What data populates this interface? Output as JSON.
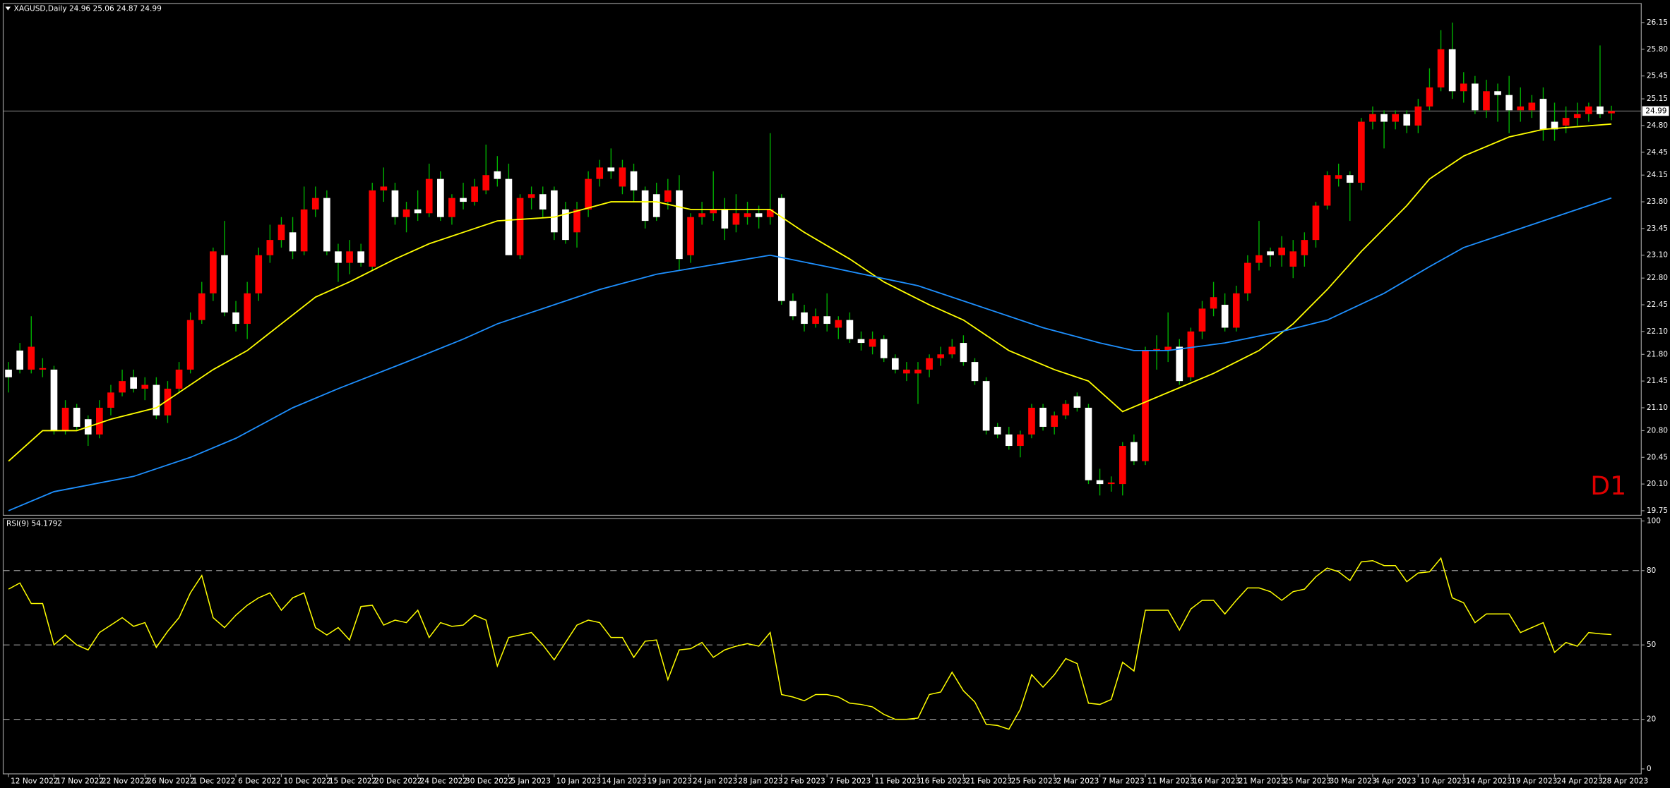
{
  "chart_data": {
    "type": "candlestick",
    "title": "XAGUSD,Daily  24.96 25.06 24.87 24.99",
    "timeframe_label": "D1",
    "bull_color": "#ff0000",
    "bear_color": "#ffffff",
    "wick_color": "#00b400",
    "categories": [
      "12 Nov 2022",
      null,
      null,
      null,
      "17 Nov 2022",
      null,
      null,
      null,
      "22 Nov 2022",
      null,
      null,
      null,
      "26 Nov 2022",
      null,
      null,
      null,
      "1 Dec 2022",
      null,
      null,
      null,
      "6 Dec 2022",
      null,
      null,
      null,
      "10 Dec 2022",
      null,
      null,
      null,
      "15 Dec 2022",
      null,
      null,
      null,
      "20 Dec 2022",
      null,
      null,
      null,
      "24 Dec 2022",
      null,
      null,
      null,
      "30 Dec 2022",
      null,
      null,
      null,
      "5 Jan 2023",
      null,
      null,
      null,
      "10 Jan 2023",
      null,
      null,
      null,
      "14 Jan 2023",
      null,
      null,
      null,
      "19 Jan 2023",
      null,
      null,
      null,
      "24 Jan 2023",
      null,
      null,
      null,
      "28 Jan 2023",
      null,
      null,
      null,
      "2 Feb 2023",
      null,
      null,
      null,
      "7 Feb 2023",
      null,
      null,
      null,
      "11 Feb 2023",
      null,
      null,
      null,
      "16 Feb 2023",
      null,
      null,
      null,
      "21 Feb 2023",
      null,
      null,
      null,
      "25 Feb 2023",
      null,
      null,
      null,
      "2 Mar 2023",
      null,
      null,
      null,
      "7 Mar 2023",
      null,
      null,
      null,
      "11 Mar 2023",
      null,
      null,
      null,
      "16 Mar 2023",
      null,
      null,
      null,
      "21 Mar 2023",
      null,
      null,
      null,
      "25 Mar 2023",
      null,
      null,
      null,
      "30 Mar 2023",
      null,
      null,
      null,
      "4 Apr 2023",
      null,
      null,
      null,
      "10 Apr 2023",
      null,
      null,
      null,
      "14 Apr 2023",
      null,
      null,
      null,
      "19 Apr 2023",
      null,
      null,
      null,
      "24 Apr 2023",
      null,
      null,
      null,
      "28 Apr 2023",
      null
    ],
    "open": [
      21.6,
      21.85,
      21.6,
      21.6,
      21.6,
      20.8,
      21.1,
      20.95,
      20.75,
      21.1,
      21.3,
      21.5,
      21.35,
      21.4,
      21.0,
      21.35,
      21.6,
      22.25,
      22.6,
      23.1,
      22.35,
      22.2,
      22.6,
      23.1,
      23.3,
      23.4,
      23.15,
      23.7,
      23.85,
      23.15,
      23.0,
      23.15,
      22.95,
      23.95,
      23.95,
      23.6,
      23.7,
      23.65,
      24.1,
      23.6,
      23.85,
      23.8,
      23.95,
      24.2,
      24.1,
      23.1,
      23.85,
      23.9,
      23.95,
      23.7,
      23.4,
      23.7,
      24.1,
      24.25,
      24.0,
      24.2,
      23.95,
      23.9,
      23.8,
      23.95,
      23.1,
      23.6,
      23.65,
      23.7,
      23.5,
      23.6,
      23.65,
      23.6,
      23.85,
      22.5,
      22.35,
      22.2,
      22.3,
      22.15,
      22.25,
      22.0,
      21.9,
      22.0,
      21.75,
      21.55,
      21.55,
      21.6,
      21.75,
      21.8,
      21.95,
      21.7,
      21.45,
      20.85,
      20.75,
      20.6,
      20.75,
      21.1,
      20.85,
      21.0,
      21.25,
      21.1,
      20.15,
      20.1,
      20.1,
      20.65,
      20.4,
      21.85,
      21.85,
      21.9,
      21.5,
      22.1,
      22.4,
      22.45,
      22.15,
      22.6,
      23.0,
      23.15,
      23.1,
      22.95,
      23.1,
      23.3,
      23.75,
      24.1,
      24.15,
      24.05,
      24.85,
      24.95,
      24.85,
      24.95,
      24.8,
      25.05,
      25.3,
      25.8,
      25.25,
      25.35,
      25.0,
      25.25,
      25.2,
      25.0,
      25.0,
      25.15,
      24.85,
      24.8,
      24.9,
      24.95,
      25.05,
      24.96
    ],
    "high": [
      21.7,
      21.95,
      22.3,
      21.75,
      21.65,
      21.2,
      21.15,
      21.0,
      21.2,
      21.4,
      21.6,
      21.6,
      21.5,
      21.5,
      21.45,
      21.7,
      22.35,
      22.75,
      23.2,
      23.55,
      22.5,
      22.75,
      23.2,
      23.5,
      23.6,
      23.6,
      24.0,
      24.0,
      23.95,
      23.25,
      23.3,
      23.25,
      24.05,
      24.25,
      24.05,
      23.8,
      23.95,
      24.3,
      24.2,
      23.9,
      24.05,
      24.1,
      24.55,
      24.4,
      24.3,
      23.9,
      24.0,
      24.0,
      24.0,
      23.8,
      23.8,
      24.2,
      24.35,
      24.5,
      24.35,
      24.3,
      24.0,
      24.05,
      24.1,
      24.15,
      23.65,
      23.8,
      24.2,
      23.85,
      23.9,
      23.8,
      23.75,
      24.7,
      23.9,
      22.6,
      22.45,
      22.4,
      22.6,
      22.3,
      22.35,
      22.1,
      22.1,
      22.05,
      21.8,
      21.7,
      21.7,
      21.8,
      21.9,
      22.0,
      22.05,
      21.75,
      21.5,
      20.9,
      20.85,
      20.8,
      21.15,
      21.15,
      21.05,
      21.2,
      21.3,
      21.15,
      20.3,
      20.2,
      20.65,
      20.75,
      21.9,
      22.05,
      22.35,
      22.0,
      22.15,
      22.5,
      22.75,
      22.6,
      22.7,
      23.1,
      23.55,
      23.2,
      23.35,
      23.3,
      23.4,
      23.8,
      24.2,
      24.3,
      24.2,
      24.9,
      25.05,
      25.0,
      25.0,
      25.0,
      25.15,
      25.55,
      26.05,
      26.15,
      25.5,
      25.45,
      25.4,
      25.35,
      25.45,
      25.3,
      25.2,
      25.3,
      25.1,
      25.05,
      25.1,
      25.1,
      25.85,
      25.06
    ],
    "low": [
      21.3,
      21.55,
      21.55,
      21.5,
      20.75,
      20.75,
      20.8,
      20.6,
      20.7,
      21.0,
      21.25,
      21.3,
      21.2,
      20.95,
      20.9,
      21.3,
      21.55,
      22.2,
      22.5,
      22.3,
      22.1,
      22.0,
      22.5,
      23.0,
      23.2,
      23.05,
      23.1,
      23.6,
      23.1,
      22.75,
      22.85,
      22.95,
      22.9,
      23.8,
      23.5,
      23.4,
      23.55,
      23.6,
      23.55,
      23.5,
      23.7,
      23.75,
      23.9,
      24.0,
      23.1,
      23.05,
      23.7,
      23.6,
      23.3,
      23.25,
      23.2,
      23.6,
      24.0,
      24.1,
      23.9,
      23.8,
      23.45,
      23.55,
      23.7,
      22.9,
      23.0,
      23.5,
      23.55,
      23.3,
      23.4,
      23.5,
      23.45,
      23.5,
      22.45,
      22.25,
      22.1,
      22.15,
      22.1,
      22.0,
      21.95,
      21.85,
      21.8,
      21.7,
      21.55,
      21.45,
      21.15,
      21.5,
      21.65,
      21.75,
      21.65,
      21.4,
      20.75,
      20.7,
      20.55,
      20.45,
      20.7,
      20.8,
      20.75,
      20.95,
      21.05,
      20.1,
      19.95,
      20.0,
      19.95,
      20.35,
      20.35,
      21.6,
      21.7,
      21.4,
      21.45,
      22.0,
      22.3,
      22.1,
      22.1,
      22.5,
      22.9,
      22.95,
      22.95,
      22.8,
      22.95,
      23.2,
      23.7,
      24.0,
      23.55,
      23.95,
      24.75,
      24.5,
      24.75,
      24.7,
      24.7,
      25.0,
      25.25,
      25.15,
      25.1,
      24.95,
      24.9,
      24.85,
      24.7,
      24.85,
      24.9,
      24.6,
      24.6,
      24.7,
      24.8,
      24.85,
      24.9,
      24.87
    ],
    "close": [
      21.5,
      21.6,
      21.9,
      21.62,
      20.8,
      21.1,
      20.85,
      20.75,
      21.1,
      21.3,
      21.45,
      21.35,
      21.4,
      21.0,
      21.35,
      21.6,
      22.25,
      22.6,
      23.15,
      22.35,
      22.2,
      22.6,
      23.1,
      23.3,
      23.5,
      23.15,
      23.7,
      23.85,
      23.15,
      23.0,
      23.15,
      23.0,
      23.95,
      24.0,
      23.6,
      23.7,
      23.65,
      24.1,
      23.6,
      23.85,
      23.8,
      24.0,
      24.15,
      24.1,
      23.1,
      23.85,
      23.9,
      23.7,
      23.4,
      23.3,
      23.7,
      24.1,
      24.25,
      24.2,
      24.25,
      23.95,
      23.55,
      23.6,
      23.95,
      23.05,
      23.6,
      23.65,
      23.7,
      23.45,
      23.65,
      23.65,
      23.6,
      23.7,
      22.5,
      22.3,
      22.2,
      22.3,
      22.2,
      22.25,
      22.0,
      21.95,
      22.0,
      21.75,
      21.6,
      21.6,
      21.6,
      21.75,
      21.8,
      21.9,
      21.7,
      21.45,
      20.8,
      20.75,
      20.6,
      20.75,
      21.1,
      20.85,
      21.0,
      21.15,
      21.1,
      20.15,
      20.1,
      20.12,
      20.6,
      20.4,
      21.85,
      21.87,
      21.9,
      21.45,
      22.1,
      22.4,
      22.55,
      22.15,
      22.6,
      23.0,
      23.1,
      23.1,
      23.2,
      23.15,
      23.3,
      23.75,
      24.15,
      24.15,
      24.05,
      24.85,
      24.95,
      24.85,
      24.95,
      24.8,
      25.05,
      25.3,
      25.8,
      25.25,
      25.35,
      25.0,
      25.25,
      25.2,
      25.0,
      25.05,
      25.1,
      24.75,
      24.75,
      24.9,
      24.95,
      25.05,
      24.95,
      24.99
    ],
    "overlays": [
      {
        "color": "#ffff00",
        "x": [
          0,
          3,
          6,
          9,
          13,
          18,
          21,
          24,
          27,
          30,
          34,
          37,
          40,
          43,
          48,
          53,
          57,
          60,
          67,
          70,
          74,
          77,
          81,
          84,
          88,
          92,
          95,
          98,
          102,
          106,
          110,
          113,
          116,
          119,
          123,
          125,
          128,
          132,
          135,
          141
        ],
        "values": [
          20.4,
          20.8,
          20.8,
          20.95,
          21.1,
          21.6,
          21.85,
          22.2,
          22.55,
          22.75,
          23.05,
          23.25,
          23.4,
          23.55,
          23.6,
          23.8,
          23.8,
          23.7,
          23.7,
          23.4,
          23.05,
          22.75,
          22.45,
          22.25,
          21.85,
          21.6,
          21.45,
          21.05,
          21.3,
          21.55,
          21.85,
          22.2,
          22.65,
          23.15,
          23.75,
          24.1,
          24.4,
          24.65,
          24.75,
          24.82
        ]
      },
      {
        "color": "#1e90ff",
        "x": [
          0,
          4,
          11,
          16,
          20,
          25,
          29,
          35,
          40,
          43,
          48,
          52,
          57,
          63,
          67,
          72,
          80,
          85,
          91,
          96,
          99,
          102,
          107,
          112,
          116,
          121,
          125,
          128,
          134,
          141
        ],
        "values": [
          19.75,
          20.0,
          20.2,
          20.45,
          20.7,
          21.1,
          21.35,
          21.7,
          22.0,
          22.2,
          22.45,
          22.65,
          22.85,
          23.0,
          23.1,
          22.95,
          22.7,
          22.45,
          22.15,
          21.95,
          21.85,
          21.85,
          21.95,
          22.1,
          22.25,
          22.6,
          22.95,
          23.2,
          23.5,
          23.85
        ]
      }
    ],
    "last_price": 24.99,
    "ylim": [
      19.69,
      26.4
    ],
    "yticks": [
      {
        "value": 19.75,
        "label": "19.75"
      },
      {
        "value": 20.1,
        "label": "20.10"
      },
      20.45,
      {
        "value": 20.8,
        "label": "20.80"
      },
      {
        "value": 21.1,
        "label": "21.10"
      },
      21.45,
      {
        "value": 21.8,
        "label": "21.80"
      },
      {
        "value": 22.1,
        "label": "22.10"
      },
      22.45,
      {
        "value": 22.8,
        "label": "22.80"
      },
      {
        "value": 23.1,
        "label": "23.10"
      },
      23.45,
      {
        "value": 23.8,
        "label": "23.80"
      },
      24.15,
      24.45,
      {
        "value": 24.8,
        "label": "24.80"
      },
      25.15,
      25.45,
      {
        "value": 25.8,
        "label": "25.80"
      },
      26.15
    ],
    "indicator": {
      "title": "RSI(9) 54.1792",
      "color": "#ffff00",
      "ylim": [
        -2,
        101
      ],
      "yticks": [
        0,
        20,
        50,
        80,
        100
      ],
      "values": [
        72.5,
        75,
        66.7,
        66.7,
        50,
        54,
        50,
        48,
        55,
        58,
        61,
        57.5,
        59,
        49,
        55.5,
        61,
        71,
        78,
        61,
        57,
        62,
        66,
        69,
        71,
        64,
        69,
        71,
        57,
        54,
        57,
        52,
        65.5,
        66,
        58,
        60,
        59,
        64,
        53,
        59,
        57.5,
        58,
        62,
        60,
        41.5,
        53,
        54,
        55,
        50,
        44,
        51,
        58,
        60,
        59,
        53,
        53,
        45,
        51.5,
        52,
        36,
        48,
        48.5,
        51,
        45,
        48,
        49.5,
        50.5,
        49.5,
        55,
        30,
        29,
        27.5,
        30,
        30,
        29,
        26.5,
        26,
        25,
        22,
        20,
        20,
        20.5,
        30,
        31,
        39,
        31.5,
        27,
        18,
        17.5,
        16,
        24,
        38,
        33,
        38,
        44.5,
        42.5,
        26.5,
        26,
        28,
        43,
        39.5,
        64,
        64,
        64,
        56,
        64.5,
        68,
        68,
        62.5,
        68,
        73,
        73,
        71.5,
        68,
        71.5,
        72.5,
        77.5,
        81,
        79.5,
        76,
        83.5,
        84,
        82,
        82,
        75.5,
        79,
        79.5,
        85,
        69,
        67,
        59,
        62.5,
        62.5,
        62.5,
        55,
        57,
        59,
        47,
        51,
        49.5,
        55,
        54.5,
        54.18
      ]
    }
  }
}
